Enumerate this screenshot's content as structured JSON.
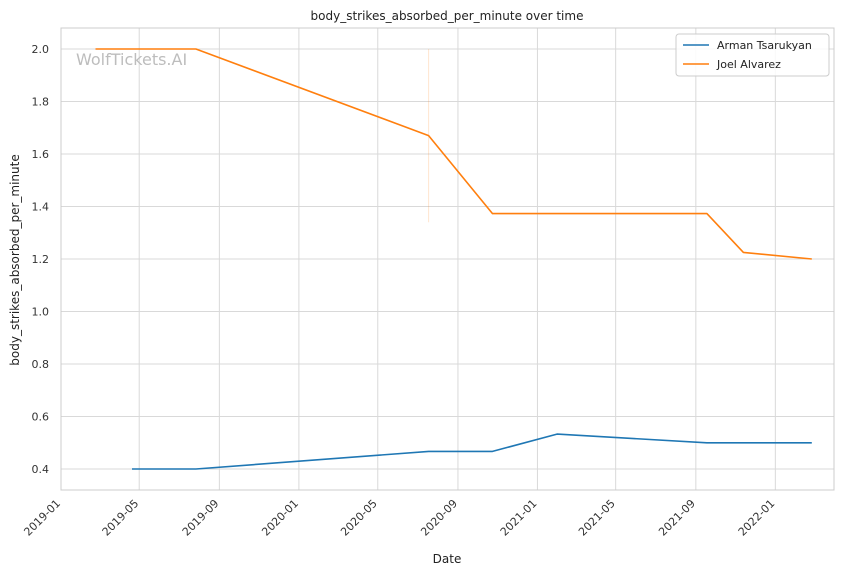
{
  "chart_data": {
    "type": "line",
    "title": "body_strikes_absorbed_per_minute over time",
    "xlabel": "Date",
    "ylabel": "body_strikes_absorbed_per_minute",
    "xlim": [
      "2019-01-01",
      "2022-04-01"
    ],
    "ylim": [
      0.32,
      2.08
    ],
    "x_ticks": [
      "2019-01",
      "2019-05",
      "2019-09",
      "2020-01",
      "2020-05",
      "2020-09",
      "2021-01",
      "2021-05",
      "2021-09",
      "2022-01"
    ],
    "y_ticks": [
      "0.4",
      "0.6",
      "0.8",
      "1.0",
      "1.2",
      "1.4",
      "1.6",
      "1.8",
      "2.0"
    ],
    "grid": true,
    "legend_position": "top-right",
    "watermark": "WolfTickets.AI",
    "series": [
      {
        "name": "Arman Tsarukyan",
        "color": "#1f77b4",
        "points": [
          {
            "x": "2019-04-20",
            "y": 0.4
          },
          {
            "x": "2019-07-27",
            "y": 0.4
          },
          {
            "x": "2020-07-18",
            "y": 0.467
          },
          {
            "x": "2020-10-24",
            "y": 0.467
          },
          {
            "x": "2021-01-31",
            "y": 0.533
          },
          {
            "x": "2021-09-18",
            "y": 0.5
          },
          {
            "x": "2022-02-26",
            "y": 0.5
          }
        ]
      },
      {
        "name": "Joel Alvarez",
        "color": "#ff7f0e",
        "points": [
          {
            "x": "2019-02-23",
            "y": 2.0
          },
          {
            "x": "2019-07-27",
            "y": 2.0
          },
          {
            "x": "2020-07-18",
            "y": 1.67
          },
          {
            "x": "2020-10-24",
            "y": 1.373
          },
          {
            "x": "2021-09-18",
            "y": 1.373
          },
          {
            "x": "2021-11-13",
            "y": 1.225
          },
          {
            "x": "2022-02-26",
            "y": 1.2
          }
        ]
      }
    ]
  }
}
